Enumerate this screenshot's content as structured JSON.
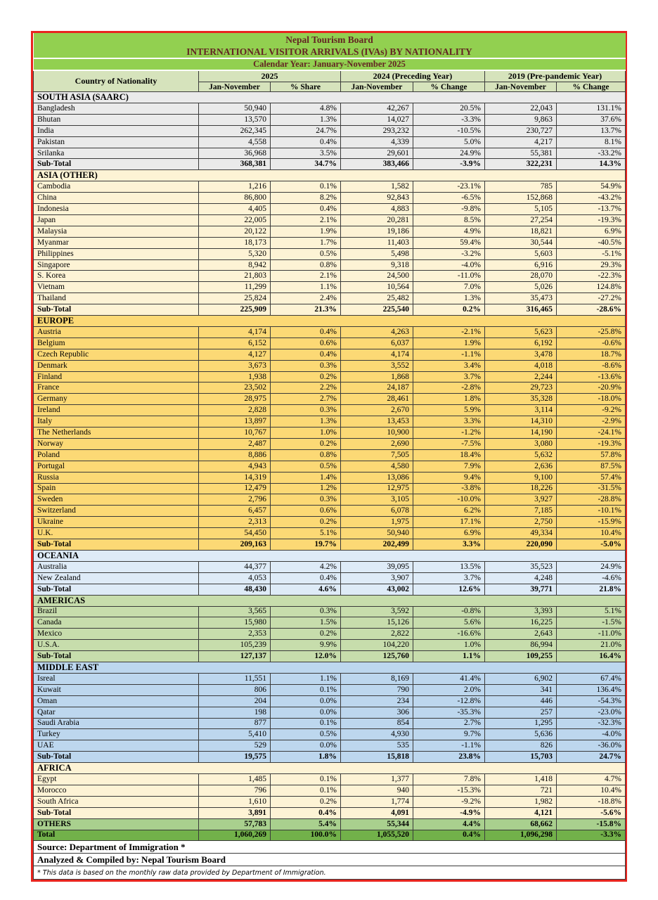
{
  "header": {
    "title": "Nepal Tourism Board",
    "subtitle": "INTERNATIONAL VISITOR ARRIVALS (IVAs)  BY NATIONALITY",
    "period": "Calendar Year: January-November 2025",
    "country_col": "Country of Nationality",
    "groups": [
      {
        "label": "2025"
      },
      {
        "label": "2024 (Preceding Year)"
      },
      {
        "label": "2019 (Pre-pandemic Year)"
      }
    ],
    "sub_headers": [
      "Jan-November",
      "% Share",
      "Jan-November",
      "% Change",
      "Jan-November",
      "% Change"
    ]
  },
  "colors": {
    "band_green": "#92D050",
    "header_pale_green": "#D6E3BC",
    "title_text": "#632423",
    "border_red": "#E8251F",
    "saarc": "#EAEAEA",
    "asia_other": "#FDF3D5",
    "europe": "#FCD975",
    "oceania": "#DEEBF7",
    "americas": "#C7DDAC",
    "middle_east": "#BDD7EE",
    "africa": "#FDF3D5",
    "others": "#A9D08E",
    "total": "#72B14A"
  },
  "sections": [
    {
      "name": "SOUTH ASIA (SAARC)",
      "color_key": "saarc",
      "rows": [
        {
          "country": "Bangladesh",
          "values": [
            "50,940",
            "4.8%",
            "42,267",
            "20.5%",
            "22,043",
            "131.1%"
          ]
        },
        {
          "country": "Bhutan",
          "values": [
            "13,570",
            "1.3%",
            "14,027",
            "-3.3%",
            "9,863",
            "37.6%"
          ]
        },
        {
          "country": "India",
          "values": [
            "262,345",
            "24.7%",
            "293,232",
            "-10.5%",
            "230,727",
            "13.7%"
          ]
        },
        {
          "country": "Pakistan",
          "values": [
            "4,558",
            "0.4%",
            "4,339",
            "5.0%",
            "4,217",
            "8.1%"
          ]
        },
        {
          "country": "Srilanka",
          "values": [
            "36,968",
            "3.5%",
            "29,601",
            "24.9%",
            "55,381",
            "-33.2%"
          ]
        }
      ],
      "subtotal_label": "Sub-Total",
      "subtotal": [
        "368,381",
        "34.7%",
        "383,466",
        "-3.9%",
        "322,231",
        "14.3%"
      ]
    },
    {
      "name": "ASIA (OTHER)",
      "color_key": "asia_other",
      "rows": [
        {
          "country": "Cambodia",
          "values": [
            "1,216",
            "0.1%",
            "1,582",
            "-23.1%",
            "785",
            "54.9%"
          ]
        },
        {
          "country": "China",
          "values": [
            "86,800",
            "8.2%",
            "92,843",
            "-6.5%",
            "152,868",
            "-43.2%"
          ]
        },
        {
          "country": "Indonesia",
          "values": [
            "4,405",
            "0.4%",
            "4,883",
            "-9.8%",
            "5,105",
            "-13.7%"
          ]
        },
        {
          "country": "Japan",
          "values": [
            "22,005",
            "2.1%",
            "20,281",
            "8.5%",
            "27,254",
            "-19.3%"
          ]
        },
        {
          "country": "Malaysia",
          "values": [
            "20,122",
            "1.9%",
            "19,186",
            "4.9%",
            "18,821",
            "6.9%"
          ]
        },
        {
          "country": "Myanmar",
          "values": [
            "18,173",
            "1.7%",
            "11,403",
            "59.4%",
            "30,544",
            "-40.5%"
          ]
        },
        {
          "country": "Philippines",
          "values": [
            "5,320",
            "0.5%",
            "5,498",
            "-3.2%",
            "5,603",
            "-5.1%"
          ]
        },
        {
          "country": "Singapore",
          "values": [
            "8,942",
            "0.8%",
            "9,318",
            "-4.0%",
            "6,916",
            "29.3%"
          ]
        },
        {
          "country": "S. Korea",
          "values": [
            "21,803",
            "2.1%",
            "24,500",
            "-11.0%",
            "28,070",
            "-22.3%"
          ]
        },
        {
          "country": "Vietnam",
          "values": [
            "11,299",
            "1.1%",
            "10,564",
            "7.0%",
            "5,026",
            "124.8%"
          ]
        },
        {
          "country": "Thailand",
          "values": [
            "25,824",
            "2.4%",
            "25,482",
            "1.3%",
            "35,473",
            "-27.2%"
          ]
        }
      ],
      "subtotal_label": "Sub-Total",
      "subtotal": [
        "225,909",
        "21.3%",
        "225,540",
        "0.2%",
        "316,465",
        "-28.6%"
      ]
    },
    {
      "name": "EUROPE",
      "color_key": "europe",
      "rows": [
        {
          "country": "Austria",
          "values": [
            "4,174",
            "0.4%",
            "4,263",
            "-2.1%",
            "5,623",
            "-25.8%"
          ]
        },
        {
          "country": "Belgium",
          "values": [
            "6,152",
            "0.6%",
            "6,037",
            "1.9%",
            "6,192",
            "-0.6%"
          ]
        },
        {
          "country": "Czech Republic",
          "values": [
            "4,127",
            "0.4%",
            "4,174",
            "-1.1%",
            "3,478",
            "18.7%"
          ]
        },
        {
          "country": "Denmark",
          "values": [
            "3,673",
            "0.3%",
            "3,552",
            "3.4%",
            "4,018",
            "-8.6%"
          ]
        },
        {
          "country": "Finland",
          "values": [
            "1,938",
            "0.2%",
            "1,868",
            "3.7%",
            "2,244",
            "-13.6%"
          ]
        },
        {
          "country": "France",
          "values": [
            "23,502",
            "2.2%",
            "24,187",
            "-2.8%",
            "29,723",
            "-20.9%"
          ]
        },
        {
          "country": "Germany",
          "values": [
            "28,975",
            "2.7%",
            "28,461",
            "1.8%",
            "35,328",
            "-18.0%"
          ]
        },
        {
          "country": "Ireland",
          "values": [
            "2,828",
            "0.3%",
            "2,670",
            "5.9%",
            "3,114",
            "-9.2%"
          ]
        },
        {
          "country": "Italy",
          "values": [
            "13,897",
            "1.3%",
            "13,453",
            "3.3%",
            "14,310",
            "-2.9%"
          ]
        },
        {
          "country": "The Netherlands",
          "values": [
            "10,767",
            "1.0%",
            "10,900",
            "-1.2%",
            "14,190",
            "-24.1%"
          ]
        },
        {
          "country": "Norway",
          "values": [
            "2,487",
            "0.2%",
            "2,690",
            "-7.5%",
            "3,080",
            "-19.3%"
          ]
        },
        {
          "country": "Poland",
          "values": [
            "8,886",
            "0.8%",
            "7,505",
            "18.4%",
            "5,632",
            "57.8%"
          ]
        },
        {
          "country": "Portugal",
          "values": [
            "4,943",
            "0.5%",
            "4,580",
            "7.9%",
            "2,636",
            "87.5%"
          ]
        },
        {
          "country": "Russia",
          "values": [
            "14,319",
            "1.4%",
            "13,086",
            "9.4%",
            "9,100",
            "57.4%"
          ]
        },
        {
          "country": "Spain",
          "values": [
            "12,479",
            "1.2%",
            "12,975",
            "-3.8%",
            "18,226",
            "-31.5%"
          ]
        },
        {
          "country": "Sweden",
          "values": [
            "2,796",
            "0.3%",
            "3,105",
            "-10.0%",
            "3,927",
            "-28.8%"
          ]
        },
        {
          "country": "Switzerland",
          "values": [
            "6,457",
            "0.6%",
            "6,078",
            "6.2%",
            "7,185",
            "-10.1%"
          ]
        },
        {
          "country": "Ukraine",
          "values": [
            "2,313",
            "0.2%",
            "1,975",
            "17.1%",
            "2,750",
            "-15.9%"
          ]
        },
        {
          "country": "U.K.",
          "values": [
            "54,450",
            "5.1%",
            "50,940",
            "6.9%",
            "49,334",
            "10.4%"
          ]
        }
      ],
      "subtotal_label": "Sub-Total",
      "subtotal": [
        "209,163",
        "19.7%",
        "202,499",
        "3.3%",
        "220,090",
        "-5.0%"
      ]
    },
    {
      "name": "OCEANIA",
      "color_key": "oceania",
      "rows": [
        {
          "country": "Australia",
          "values": [
            "44,377",
            "4.2%",
            "39,095",
            "13.5%",
            "35,523",
            "24.9%"
          ]
        },
        {
          "country": "New Zealand",
          "values": [
            "4,053",
            "0.4%",
            "3,907",
            "3.7%",
            "4,248",
            "-4.6%"
          ]
        }
      ],
      "subtotal_label": "Sub-Total",
      "subtotal": [
        "48,430",
        "4.6%",
        "43,002",
        "12.6%",
        "39,771",
        "21.8%"
      ]
    },
    {
      "name": "AMERICAS",
      "color_key": "americas",
      "rows": [
        {
          "country": "Brazil",
          "values": [
            "3,565",
            "0.3%",
            "3,592",
            "-0.8%",
            "3,393",
            "5.1%"
          ]
        },
        {
          "country": "Canada",
          "values": [
            "15,980",
            "1.5%",
            "15,126",
            "5.6%",
            "16,225",
            "-1.5%"
          ]
        },
        {
          "country": "Mexico",
          "values": [
            "2,353",
            "0.2%",
            "2,822",
            "-16.6%",
            "2,643",
            "-11.0%"
          ]
        },
        {
          "country": "U.S.A.",
          "values": [
            "105,239",
            "9.9%",
            "104,220",
            "1.0%",
            "86,994",
            "21.0%"
          ]
        }
      ],
      "subtotal_label": "Sub-Total",
      "subtotal": [
        "127,137",
        "12.0%",
        "125,760",
        "1.1%",
        "109,255",
        "16.4%"
      ]
    },
    {
      "name": "MIDDLE EAST",
      "color_key": "middle_east",
      "rows": [
        {
          "country": "Isreal",
          "values": [
            "11,551",
            "1.1%",
            "8,169",
            "41.4%",
            "6,902",
            "67.4%"
          ]
        },
        {
          "country": "Kuwait",
          "values": [
            "806",
            "0.1%",
            "790",
            "2.0%",
            "341",
            "136.4%"
          ]
        },
        {
          "country": "Oman",
          "values": [
            "204",
            "0.0%",
            "234",
            "-12.8%",
            "446",
            "-54.3%"
          ]
        },
        {
          "country": "Qatar",
          "values": [
            "198",
            "0.0%",
            "306",
            "-35.3%",
            "257",
            "-23.0%"
          ]
        },
        {
          "country": "Saudi Arabia",
          "values": [
            "877",
            "0.1%",
            "854",
            "2.7%",
            "1,295",
            "-32.3%"
          ]
        },
        {
          "country": "Turkey",
          "values": [
            "5,410",
            "0.5%",
            "4,930",
            "9.7%",
            "5,636",
            "-4.0%"
          ]
        },
        {
          "country": "UAE",
          "values": [
            "529",
            "0.0%",
            "535",
            "-1.1%",
            "826",
            "-36.0%"
          ]
        }
      ],
      "subtotal_label": "Sub-Total",
      "subtotal": [
        "19,575",
        "1.8%",
        "15,818",
        "23.8%",
        "15,703",
        "24.7%"
      ]
    },
    {
      "name": "AFRICA",
      "color_key": "africa",
      "rows": [
        {
          "country": "Egypt",
          "values": [
            "1,485",
            "0.1%",
            "1,377",
            "7.8%",
            "1,418",
            "4.7%"
          ]
        },
        {
          "country": "Morocco",
          "values": [
            "796",
            "0.1%",
            "940",
            "-15.3%",
            "721",
            "10.4%"
          ]
        },
        {
          "country": "South Africa",
          "values": [
            "1,610",
            "0.2%",
            "1,774",
            "-9.2%",
            "1,982",
            "-18.8%"
          ]
        }
      ],
      "subtotal_label": "Sub-Total",
      "subtotal": [
        "3,891",
        "0.4%",
        "4,091",
        "-4.9%",
        "4,121",
        "-5.6%"
      ]
    }
  ],
  "others_row": {
    "label": "OTHERS",
    "color_key": "others",
    "values": [
      "57,783",
      "5.4%",
      "55,344",
      "4.4%",
      "68,662",
      "-15.8%"
    ]
  },
  "total_row": {
    "label": "Total",
    "color_key": "total",
    "values": [
      "1,060,269",
      "100.0%",
      "1,055,520",
      "0.4%",
      "1,096,298",
      "-3.3%"
    ]
  },
  "footer": {
    "source": "Source: Department of Immigration *",
    "compiled_by": "Analyzed & Compiled by: Nepal Tourism Board",
    "footnote": "* This data is based on the monthly raw data provided by Department of Immigration."
  }
}
